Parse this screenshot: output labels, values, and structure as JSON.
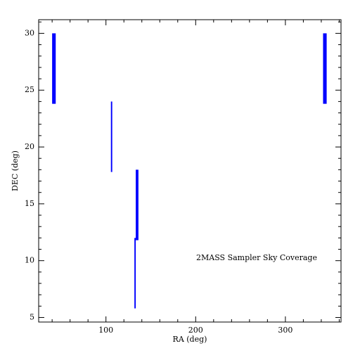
{
  "chart_data": {
    "type": "strips",
    "annotation": "2MASS Sampler Sky Coverage",
    "xlabel": "RA (deg)",
    "ylabel": "DEC (deg)",
    "color": "#0000ff",
    "strips": [
      {
        "ra": [
          40,
          44
        ],
        "dec": [
          23.8,
          30
        ]
      },
      {
        "ra": [
          105.5,
          107
        ],
        "dec": [
          17.8,
          24
        ]
      },
      {
        "ra": [
          131.7,
          133.2
        ],
        "dec": [
          5.8,
          12
        ]
      },
      {
        "ra": [
          133.2,
          136.2
        ],
        "dec": [
          11.8,
          18
        ]
      },
      {
        "ra": [
          342,
          346
        ],
        "dec": [
          23.8,
          30
        ]
      }
    ],
    "xlim": [
      25,
      362
    ],
    "ylim": [
      4.6,
      31.2
    ],
    "xticks": [
      100,
      200,
      300
    ],
    "yticks": [
      5,
      10,
      15,
      20,
      25,
      30
    ],
    "xminorticks": [
      40,
      60,
      80,
      120,
      140,
      160,
      180,
      220,
      240,
      260,
      280,
      320,
      340,
      360
    ],
    "yminorticks": [
      6,
      7,
      8,
      9,
      11,
      12,
      13,
      14,
      16,
      17,
      18,
      19,
      21,
      22,
      23,
      24,
      26,
      27,
      28,
      29,
      31
    ]
  }
}
